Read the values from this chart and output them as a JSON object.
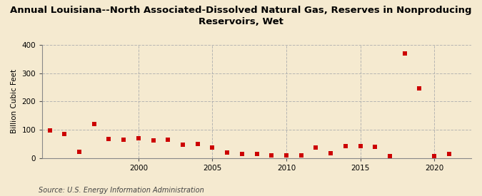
{
  "title": "Annual Louisiana--North Associated-Dissolved Natural Gas, Reserves in Nonproducing\nReservoirs, Wet",
  "ylabel": "Billion Cubic Feet",
  "source": "Source: U.S. Energy Information Administration",
  "background_color": "#f5ead0",
  "plot_bg_color": "#f5ead0",
  "marker_color": "#cc0000",
  "grid_color": "#b0b0b0",
  "years": [
    1994,
    1995,
    1996,
    1997,
    1998,
    1999,
    2000,
    2001,
    2002,
    2003,
    2004,
    2005,
    2006,
    2007,
    2008,
    2009,
    2010,
    2011,
    2012,
    2013,
    2014,
    2015,
    2016,
    2017,
    2018,
    2019,
    2020,
    2021
  ],
  "values": [
    97,
    85,
    22,
    120,
    68,
    65,
    70,
    62,
    65,
    47,
    50,
    38,
    20,
    15,
    15,
    10,
    10,
    10,
    38,
    17,
    42,
    42,
    40,
    7,
    370,
    247,
    7,
    15
  ],
  "ylim": [
    0,
    400
  ],
  "xlim": [
    1993.5,
    2022.5
  ],
  "yticks": [
    0,
    100,
    200,
    300,
    400
  ],
  "xticks": [
    2000,
    2005,
    2010,
    2015,
    2020
  ],
  "title_fontsize": 9.5,
  "ylabel_fontsize": 7.5,
  "tick_fontsize": 7.5,
  "source_fontsize": 7
}
